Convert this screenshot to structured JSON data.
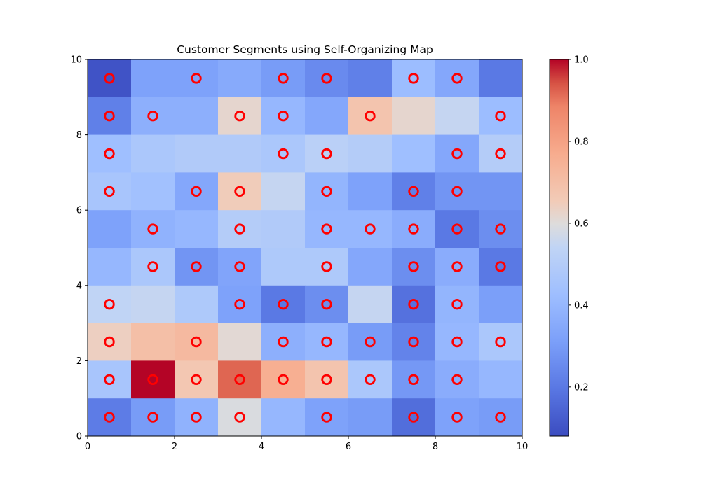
{
  "chart_data": {
    "type": "heatmap",
    "title": "Customer Segments using Self-Organizing Map",
    "xlabel": "",
    "ylabel": "",
    "xlim": [
      0,
      10
    ],
    "ylim": [
      0,
      10
    ],
    "x_ticks": [
      "0",
      "2",
      "4",
      "6",
      "8",
      "10"
    ],
    "y_ticks": [
      "0",
      "2",
      "4",
      "6",
      "8",
      "10"
    ],
    "colormap": "coolwarm",
    "colorbar": {
      "range": [
        0.08,
        1.0
      ],
      "ticks": [
        "0.2",
        "0.4",
        "0.6",
        "0.8",
        "1.0"
      ]
    },
    "grid_rows_top_to_bottom": [
      [
        0.1,
        0.32,
        0.32,
        0.35,
        0.3,
        0.25,
        0.22,
        0.42,
        0.34,
        0.2
      ],
      [
        0.22,
        0.37,
        0.37,
        0.62,
        0.4,
        0.34,
        0.68,
        0.62,
        0.55,
        0.42
      ],
      [
        0.43,
        0.47,
        0.49,
        0.49,
        0.47,
        0.52,
        0.5,
        0.43,
        0.34,
        0.5
      ],
      [
        0.46,
        0.44,
        0.34,
        0.65,
        0.55,
        0.39,
        0.32,
        0.22,
        0.28,
        0.28
      ],
      [
        0.32,
        0.38,
        0.4,
        0.5,
        0.49,
        0.4,
        0.4,
        0.36,
        0.2,
        0.26
      ],
      [
        0.4,
        0.47,
        0.28,
        0.33,
        0.48,
        0.48,
        0.34,
        0.26,
        0.36,
        0.2
      ],
      [
        0.54,
        0.55,
        0.48,
        0.32,
        0.2,
        0.26,
        0.55,
        0.18,
        0.39,
        0.31
      ],
      [
        0.64,
        0.7,
        0.72,
        0.61,
        0.37,
        0.4,
        0.3,
        0.23,
        0.4,
        0.47
      ],
      [
        0.46,
        1.0,
        0.67,
        0.92,
        0.76,
        0.68,
        0.47,
        0.29,
        0.36,
        0.4
      ],
      [
        0.21,
        0.3,
        0.38,
        0.59,
        0.4,
        0.32,
        0.3,
        0.17,
        0.32,
        0.3
      ]
    ],
    "markers": {
      "style": "circle-outline",
      "color": "#ff0000",
      "points": [
        [
          0.5,
          9.5
        ],
        [
          2.5,
          9.5
        ],
        [
          4.5,
          9.5
        ],
        [
          5.5,
          9.5
        ],
        [
          7.5,
          9.5
        ],
        [
          8.5,
          9.5
        ],
        [
          0.5,
          8.5
        ],
        [
          1.5,
          8.5
        ],
        [
          3.5,
          8.5
        ],
        [
          4.5,
          8.5
        ],
        [
          6.5,
          8.5
        ],
        [
          9.5,
          8.5
        ],
        [
          0.5,
          7.5
        ],
        [
          4.5,
          7.5
        ],
        [
          5.5,
          7.5
        ],
        [
          8.5,
          7.5
        ],
        [
          9.5,
          7.5
        ],
        [
          0.5,
          6.5
        ],
        [
          2.5,
          6.5
        ],
        [
          3.5,
          6.5
        ],
        [
          5.5,
          6.5
        ],
        [
          7.5,
          6.5
        ],
        [
          8.5,
          6.5
        ],
        [
          1.5,
          5.5
        ],
        [
          3.5,
          5.5
        ],
        [
          5.5,
          5.5
        ],
        [
          6.5,
          5.5
        ],
        [
          7.5,
          5.5
        ],
        [
          8.5,
          5.5
        ],
        [
          9.5,
          5.5
        ],
        [
          1.5,
          4.5
        ],
        [
          2.5,
          4.5
        ],
        [
          3.5,
          4.5
        ],
        [
          5.5,
          4.5
        ],
        [
          7.5,
          4.5
        ],
        [
          8.5,
          4.5
        ],
        [
          9.5,
          4.5
        ],
        [
          0.5,
          3.5
        ],
        [
          3.5,
          3.5
        ],
        [
          4.5,
          3.5
        ],
        [
          5.5,
          3.5
        ],
        [
          7.5,
          3.5
        ],
        [
          8.5,
          3.5
        ],
        [
          0.5,
          2.5
        ],
        [
          2.5,
          2.5
        ],
        [
          4.5,
          2.5
        ],
        [
          5.5,
          2.5
        ],
        [
          6.5,
          2.5
        ],
        [
          7.5,
          2.5
        ],
        [
          8.5,
          2.5
        ],
        [
          9.5,
          2.5
        ],
        [
          0.5,
          1.5
        ],
        [
          1.5,
          1.5
        ],
        [
          2.5,
          1.5
        ],
        [
          3.5,
          1.5
        ],
        [
          4.5,
          1.5
        ],
        [
          5.5,
          1.5
        ],
        [
          6.5,
          1.5
        ],
        [
          7.5,
          1.5
        ],
        [
          8.5,
          1.5
        ],
        [
          0.5,
          0.5
        ],
        [
          1.5,
          0.5
        ],
        [
          2.5,
          0.5
        ],
        [
          3.5,
          0.5
        ],
        [
          5.5,
          0.5
        ],
        [
          7.5,
          0.5
        ],
        [
          8.5,
          0.5
        ],
        [
          9.5,
          0.5
        ]
      ]
    }
  }
}
